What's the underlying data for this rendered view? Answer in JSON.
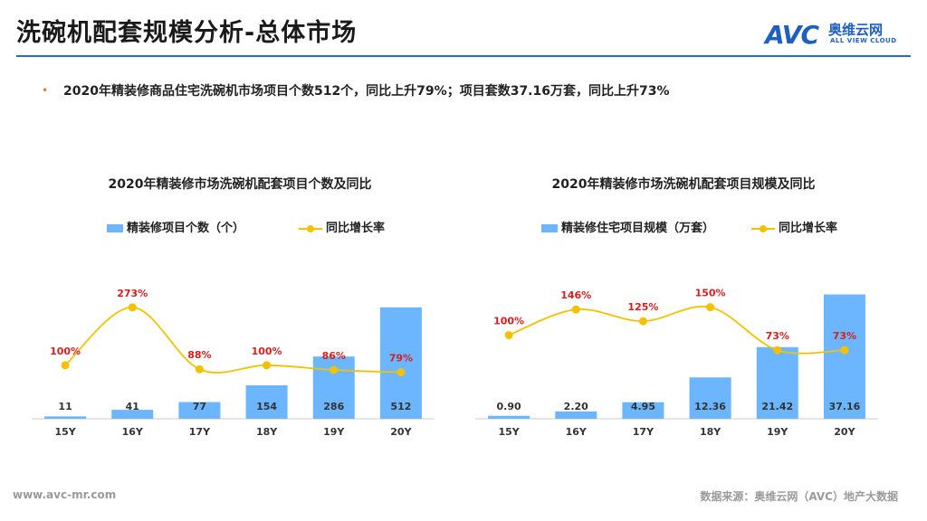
{
  "page": {
    "title": "洗碗机配套规模分析-总体市场",
    "summary": "2020年精装修商品住宅洗碗机市场项目个数512个，同比上升79%；项目套数37.16万套，同比上升73%",
    "footer_left": "www.avc-mr.com",
    "footer_right": "数据来源：奥维云网（AVC）地产大数据"
  },
  "logo": {
    "mark": "AVC",
    "cn": "奥维云网",
    "en": "ALL VIEW CLOUD"
  },
  "colors": {
    "bar": "#6bb6ff",
    "line": "#f2c200",
    "pct_label": "#d62020",
    "axis": "#cccccc",
    "accent": "#1e6fd0"
  },
  "chart_data": [
    {
      "type": "bar+line",
      "title": "2020年精装修市场洗碗机配套项目个数及同比",
      "categories": [
        "15Y",
        "16Y",
        "17Y",
        "18Y",
        "19Y",
        "20Y"
      ],
      "series": [
        {
          "name": "精装修项目个数（个）",
          "type": "bar",
          "values": [
            11,
            41,
            77,
            154,
            286,
            512
          ],
          "labels": [
            "11",
            "41",
            "77",
            "154",
            "286",
            "512"
          ]
        },
        {
          "name": "同比增长率",
          "type": "line",
          "values": [
            100,
            273,
            88,
            100,
            86,
            79
          ],
          "labels": [
            "100%",
            "273%",
            "88%",
            "100%",
            "86%",
            "79%"
          ]
        }
      ],
      "ylim_bar": [
        0,
        615
      ],
      "ylim_line": [
        -60,
        340
      ]
    },
    {
      "type": "bar+line",
      "title": "2020年精装修市场洗碗机配套项目规模及同比",
      "categories": [
        "15Y",
        "16Y",
        "17Y",
        "18Y",
        "19Y",
        "20Y"
      ],
      "series": [
        {
          "name": "精装修住宅项目规模（万套）",
          "type": "bar",
          "values": [
            0.9,
            2.2,
            4.95,
            12.36,
            21.42,
            37.16
          ],
          "labels": [
            "0.90",
            "2.20",
            "4.95",
            "12.36",
            "21.42",
            "37.16"
          ]
        },
        {
          "name": "同比增长率",
          "type": "line",
          "values": [
            100,
            146,
            125,
            150,
            73,
            73
          ],
          "labels": [
            "100%",
            "146%",
            "125%",
            "150%",
            "73%",
            "73%"
          ]
        }
      ],
      "ylim_bar": [
        0,
        40
      ],
      "ylim_line": [
        -50,
        190
      ]
    }
  ]
}
